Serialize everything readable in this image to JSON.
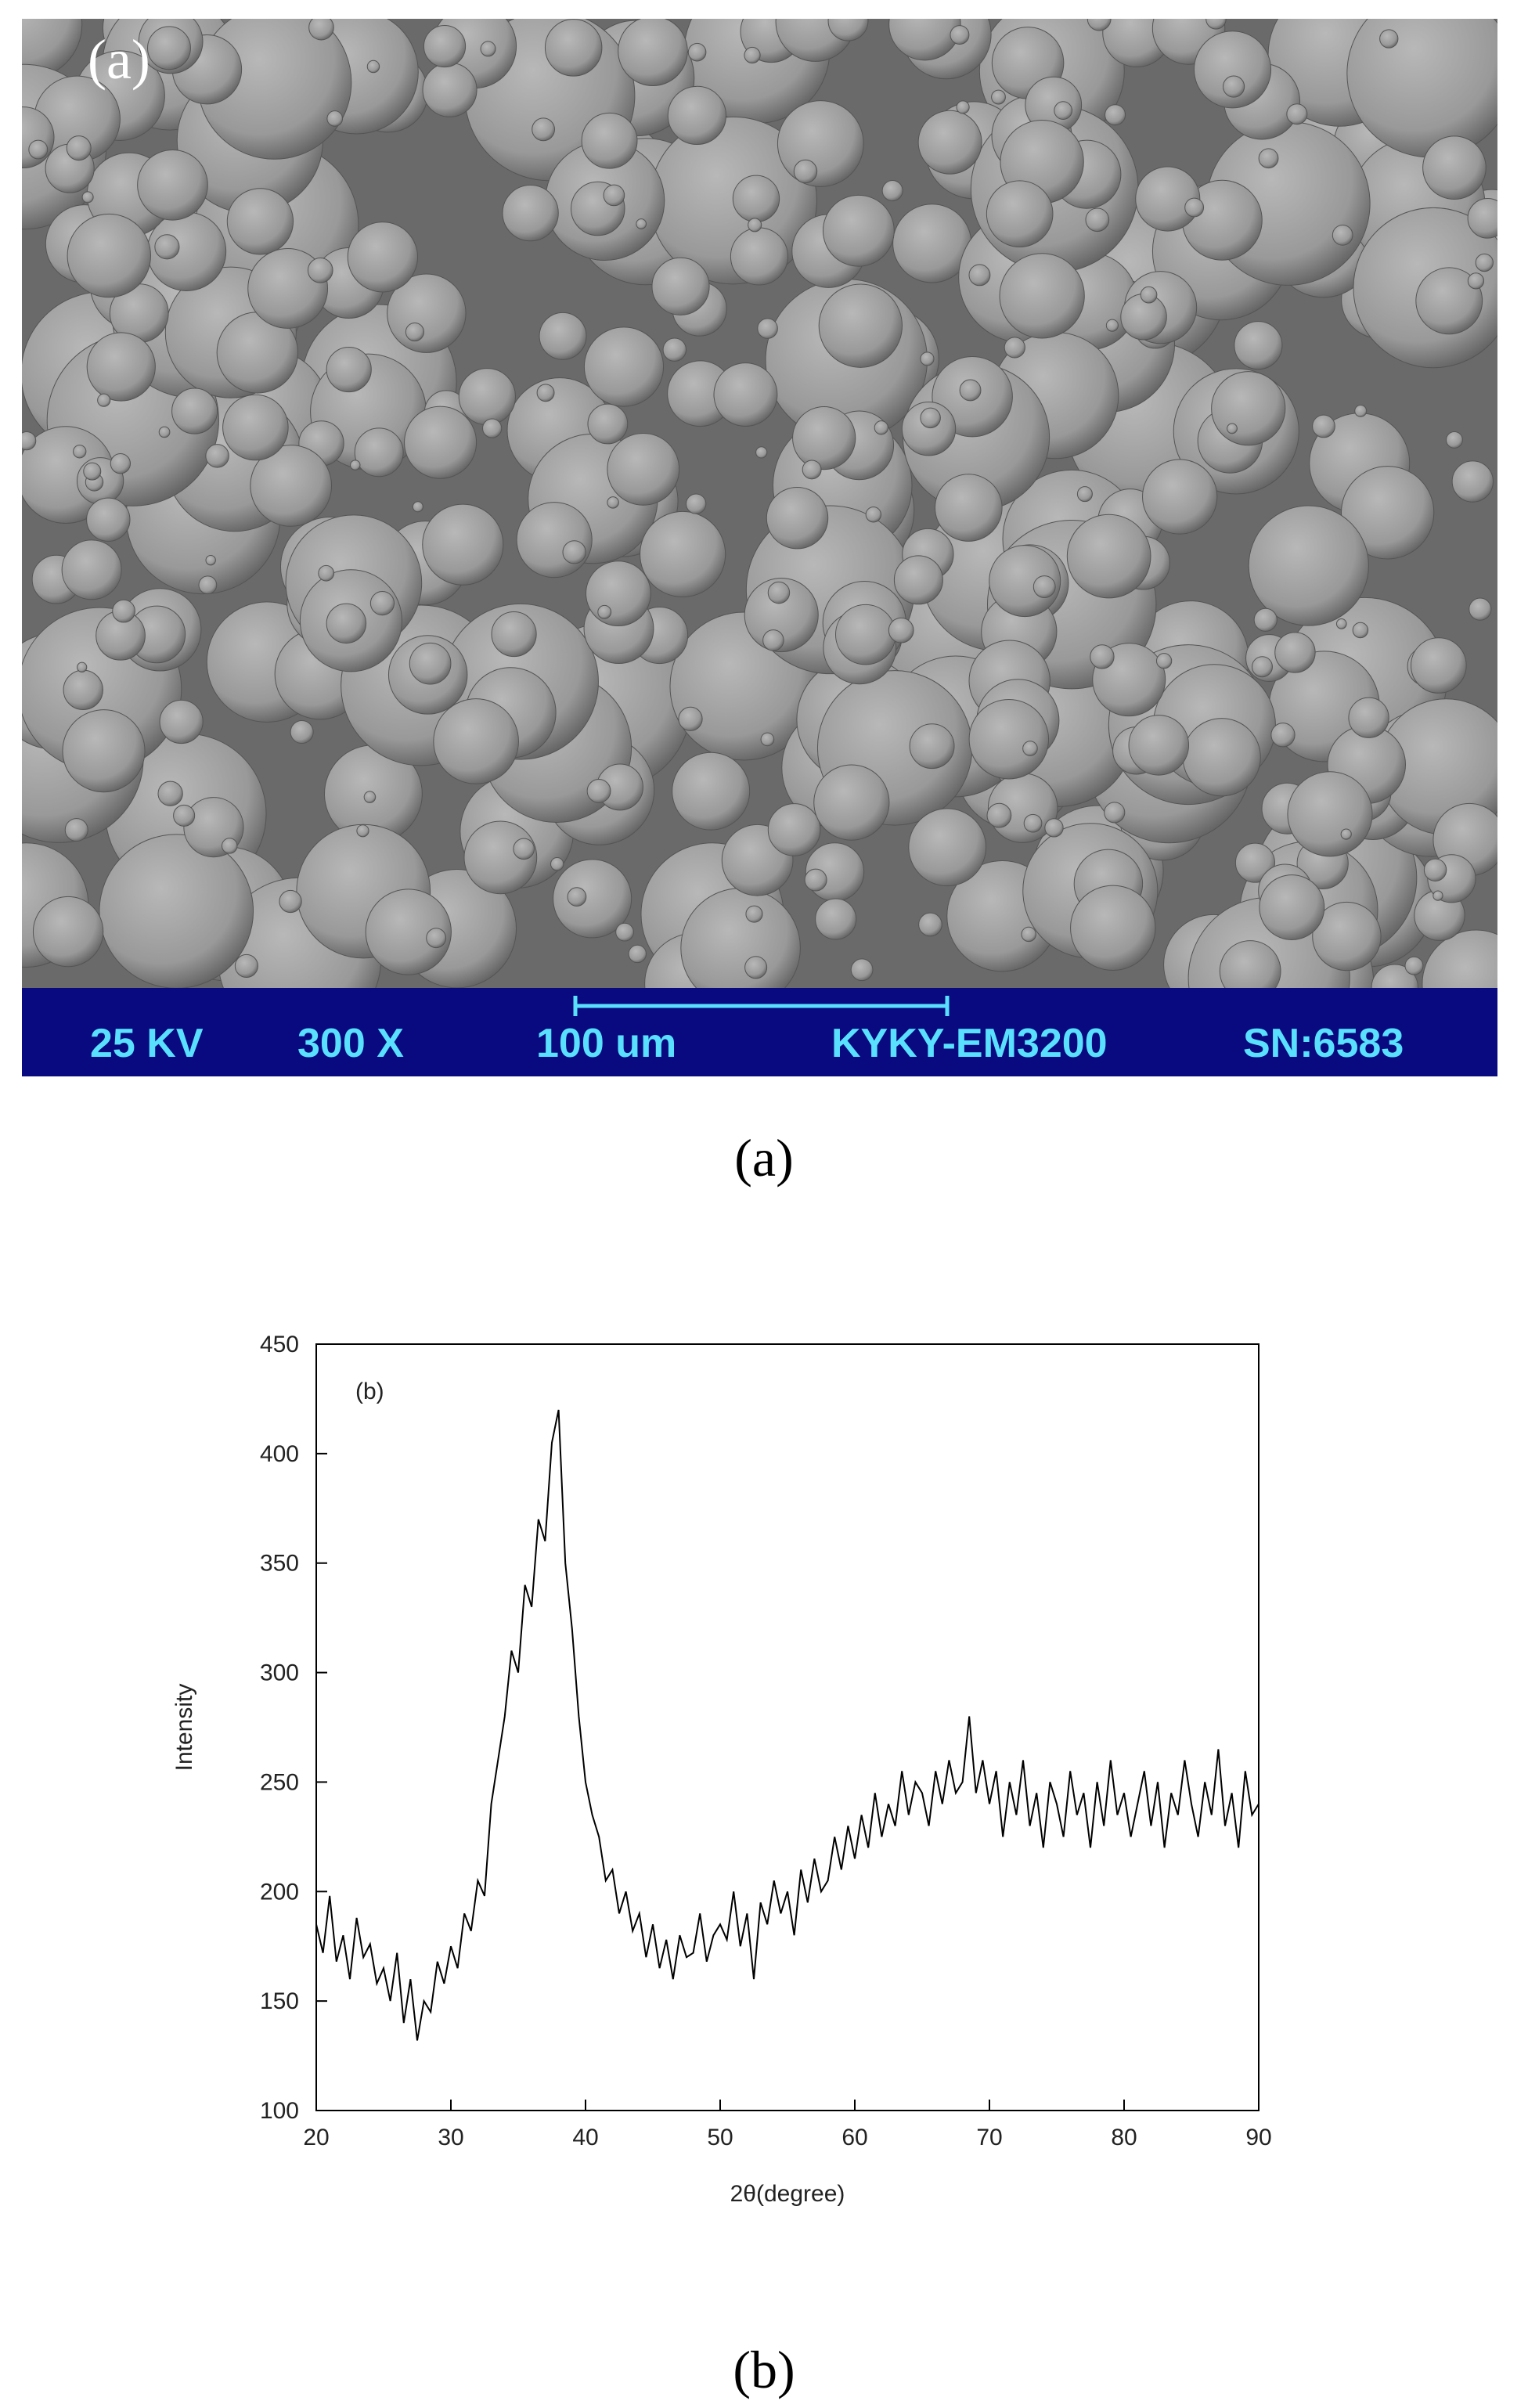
{
  "sem": {
    "label": "(a)",
    "bar": [
      "25 KV",
      "300 X",
      "100 um",
      "KYKY-EM3200",
      "SN:6583"
    ]
  },
  "captions": {
    "a": "(a)",
    "b": "(b)"
  },
  "chart_data": {
    "type": "line",
    "label": "(b)",
    "xlabel": "2θ(degree)",
    "ylabel": "Intensity",
    "color": "#000000",
    "xlim": [
      20,
      90
    ],
    "xticks": [
      20,
      30,
      40,
      50,
      60,
      70,
      80,
      90
    ],
    "ylim": [
      100,
      450
    ],
    "yticks": [
      100,
      150,
      200,
      250,
      300,
      350,
      400,
      450
    ],
    "x": [
      20,
      20.5,
      21,
      21.5,
      22,
      22.5,
      23,
      23.5,
      24,
      24.5,
      25,
      25.5,
      26,
      26.5,
      27,
      27.5,
      28,
      28.5,
      29,
      29.5,
      30,
      30.5,
      31,
      31.5,
      32,
      32.5,
      33,
      33.5,
      34,
      34.5,
      35,
      35.5,
      36,
      36.5,
      37,
      37.5,
      38,
      38.5,
      39,
      39.5,
      40,
      40.5,
      41,
      41.5,
      42,
      42.5,
      43,
      43.5,
      44,
      44.5,
      45,
      45.5,
      46,
      46.5,
      47,
      47.5,
      48,
      48.5,
      49,
      49.5,
      50,
      50.5,
      51,
      51.5,
      52,
      52.5,
      53,
      53.5,
      54,
      54.5,
      55,
      55.5,
      56,
      56.5,
      57,
      57.5,
      58,
      58.5,
      59,
      59.5,
      60,
      60.5,
      61,
      61.5,
      62,
      62.5,
      63,
      63.5,
      64,
      64.5,
      65,
      65.5,
      66,
      66.5,
      67,
      67.5,
      68,
      68.5,
      69,
      69.5,
      70,
      70.5,
      71,
      71.5,
      72,
      72.5,
      73,
      73.5,
      74,
      74.5,
      75,
      75.5,
      76,
      76.5,
      77,
      77.5,
      78,
      78.5,
      79,
      79.5,
      80,
      80.5,
      81,
      81.5,
      82,
      82.5,
      83,
      83.5,
      84,
      84.5,
      85,
      85.5,
      86,
      86.5,
      87,
      87.5,
      88,
      88.5,
      89,
      89.5,
      90
    ],
    "values": [
      185,
      172,
      198,
      168,
      180,
      160,
      188,
      170,
      176,
      158,
      165,
      150,
      172,
      140,
      160,
      132,
      150,
      145,
      168,
      158,
      175,
      165,
      190,
      182,
      205,
      198,
      240,
      260,
      280,
      310,
      300,
      340,
      330,
      370,
      360,
      405,
      420,
      350,
      320,
      280,
      250,
      235,
      225,
      205,
      210,
      190,
      200,
      182,
      190,
      170,
      185,
      165,
      178,
      160,
      180,
      170,
      172,
      190,
      168,
      180,
      185,
      178,
      200,
      175,
      190,
      160,
      195,
      185,
      205,
      190,
      200,
      180,
      210,
      195,
      215,
      200,
      205,
      225,
      210,
      230,
      215,
      235,
      220,
      245,
      225,
      240,
      230,
      255,
      235,
      250,
      245,
      230,
      255,
      240,
      260,
      245,
      250,
      280,
      245,
      260,
      240,
      255,
      225,
      250,
      235,
      260,
      230,
      245,
      220,
      250,
      240,
      225,
      255,
      235,
      245,
      220,
      250,
      230,
      260,
      235,
      245,
      225,
      240,
      255,
      230,
      250,
      220,
      245,
      235,
      260,
      240,
      225,
      250,
      235,
      265,
      230,
      245,
      220,
      255,
      235,
      240
    ]
  }
}
